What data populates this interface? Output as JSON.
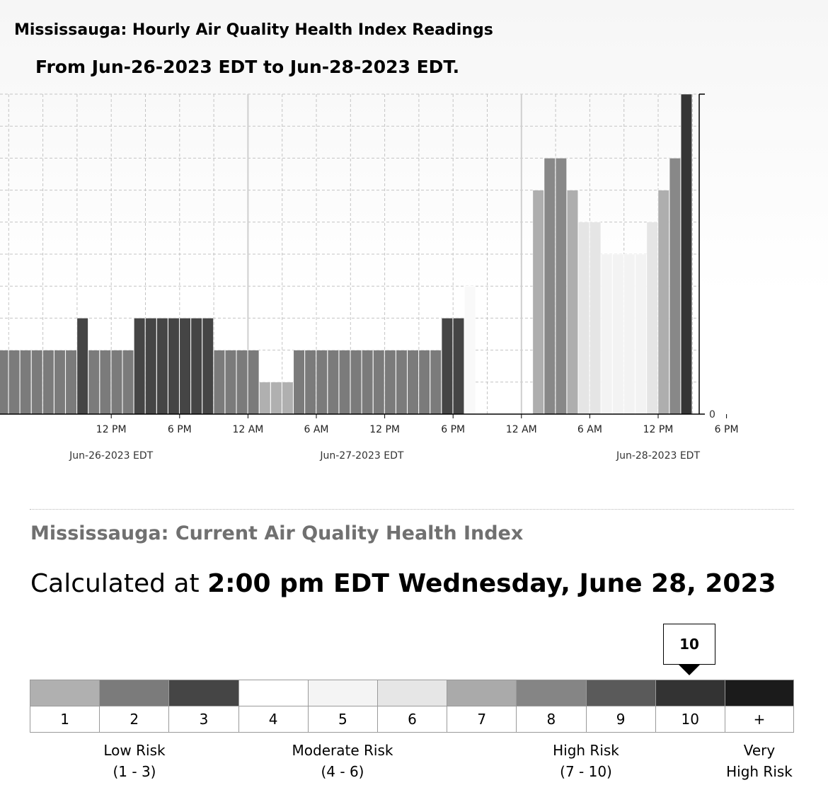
{
  "chart_title": "Mississauga: Hourly Air Quality Health Index Readings",
  "chart_subtitle": "From Jun-26-2023 EDT to Jun-28-2023 EDT.",
  "chart_data": {
    "type": "bar",
    "x_tick_labels": [
      "12 PM",
      "6 PM",
      "12 AM",
      "6 AM",
      "12 PM",
      "6 PM",
      "12 AM",
      "6 AM",
      "12 PM",
      "6 PM"
    ],
    "x_tick_hours": [
      12,
      18,
      24,
      30,
      36,
      42,
      48,
      54,
      60,
      66
    ],
    "date_labels": [
      {
        "text": "Jun-26-2023 EDT",
        "hour": 12
      },
      {
        "text": "Jun-27-2023 EDT",
        "hour": 34
      },
      {
        "text": "Jun-28-2023 EDT",
        "hour": 60
      }
    ],
    "y_tick_labels": [
      {
        "value": 0,
        "text": "0"
      }
    ],
    "ylim": [
      0,
      10
    ],
    "grid": true,
    "bar_hours": [
      3,
      4,
      5,
      6,
      7,
      8,
      9,
      10,
      11,
      12,
      13,
      14,
      15,
      16,
      17,
      18,
      19,
      20,
      21,
      22,
      23,
      24,
      25,
      26,
      27,
      28,
      29,
      30,
      31,
      32,
      33,
      34,
      35,
      36,
      37,
      38,
      39,
      40,
      41,
      42,
      43,
      44,
      50,
      51,
      52,
      53,
      54,
      55,
      56,
      57,
      58,
      59,
      60,
      61,
      62,
      63
    ],
    "values": [
      2,
      2,
      2,
      2,
      2,
      2,
      2,
      3,
      2,
      2,
      2,
      2,
      3,
      3,
      3,
      3,
      3,
      3,
      3,
      2,
      2,
      2,
      2,
      1,
      1,
      1,
      2,
      2,
      2,
      2,
      2,
      2,
      2,
      2,
      2,
      2,
      2,
      2,
      2,
      3,
      3,
      4,
      7,
      8,
      8,
      7,
      6,
      6,
      5,
      5,
      5,
      5,
      6,
      7,
      8,
      10
    ]
  },
  "level_colors": {
    "1": "#b0b0b0",
    "2": "#7b7b7b",
    "3": "#454545",
    "4": "#f9f9f9",
    "5": "#f3f3f3",
    "6": "#e5e5e5",
    "7": "#aeaeae",
    "8": "#888888",
    "9": "#5d5d5d",
    "10": "#353535",
    "+": "#1a1a1a"
  },
  "current": {
    "title": "Mississauga: Current Air Quality Health Index",
    "calc_prefix": "Calculated at ",
    "calc_time": "2:00 pm EDT Wednesday, June 28, 2023",
    "current_value": "10"
  },
  "scale": [
    {
      "label": "1",
      "color": "#b0b0b0"
    },
    {
      "label": "2",
      "color": "#7b7b7b"
    },
    {
      "label": "3",
      "color": "#454545"
    },
    {
      "label": "4",
      "color": "#ffffff"
    },
    {
      "label": "5",
      "color": "#f4f4f4"
    },
    {
      "label": "6",
      "color": "#e6e6e6"
    },
    {
      "label": "7",
      "color": "#aaaaaa"
    },
    {
      "label": "8",
      "color": "#858585"
    },
    {
      "label": "9",
      "color": "#5a5a5a"
    },
    {
      "label": "10",
      "color": "#333333"
    },
    {
      "label": "+",
      "color": "#1b1b1b"
    }
  ],
  "risk_categories": {
    "low": {
      "name": "Low Risk",
      "range": "(1 - 3)"
    },
    "moderate": {
      "name": "Moderate Risk",
      "range": "(4 - 6)"
    },
    "high": {
      "name": "High Risk",
      "range": "(7 - 10)"
    },
    "very_high": {
      "name": "Very",
      "name2": "High Risk"
    }
  }
}
